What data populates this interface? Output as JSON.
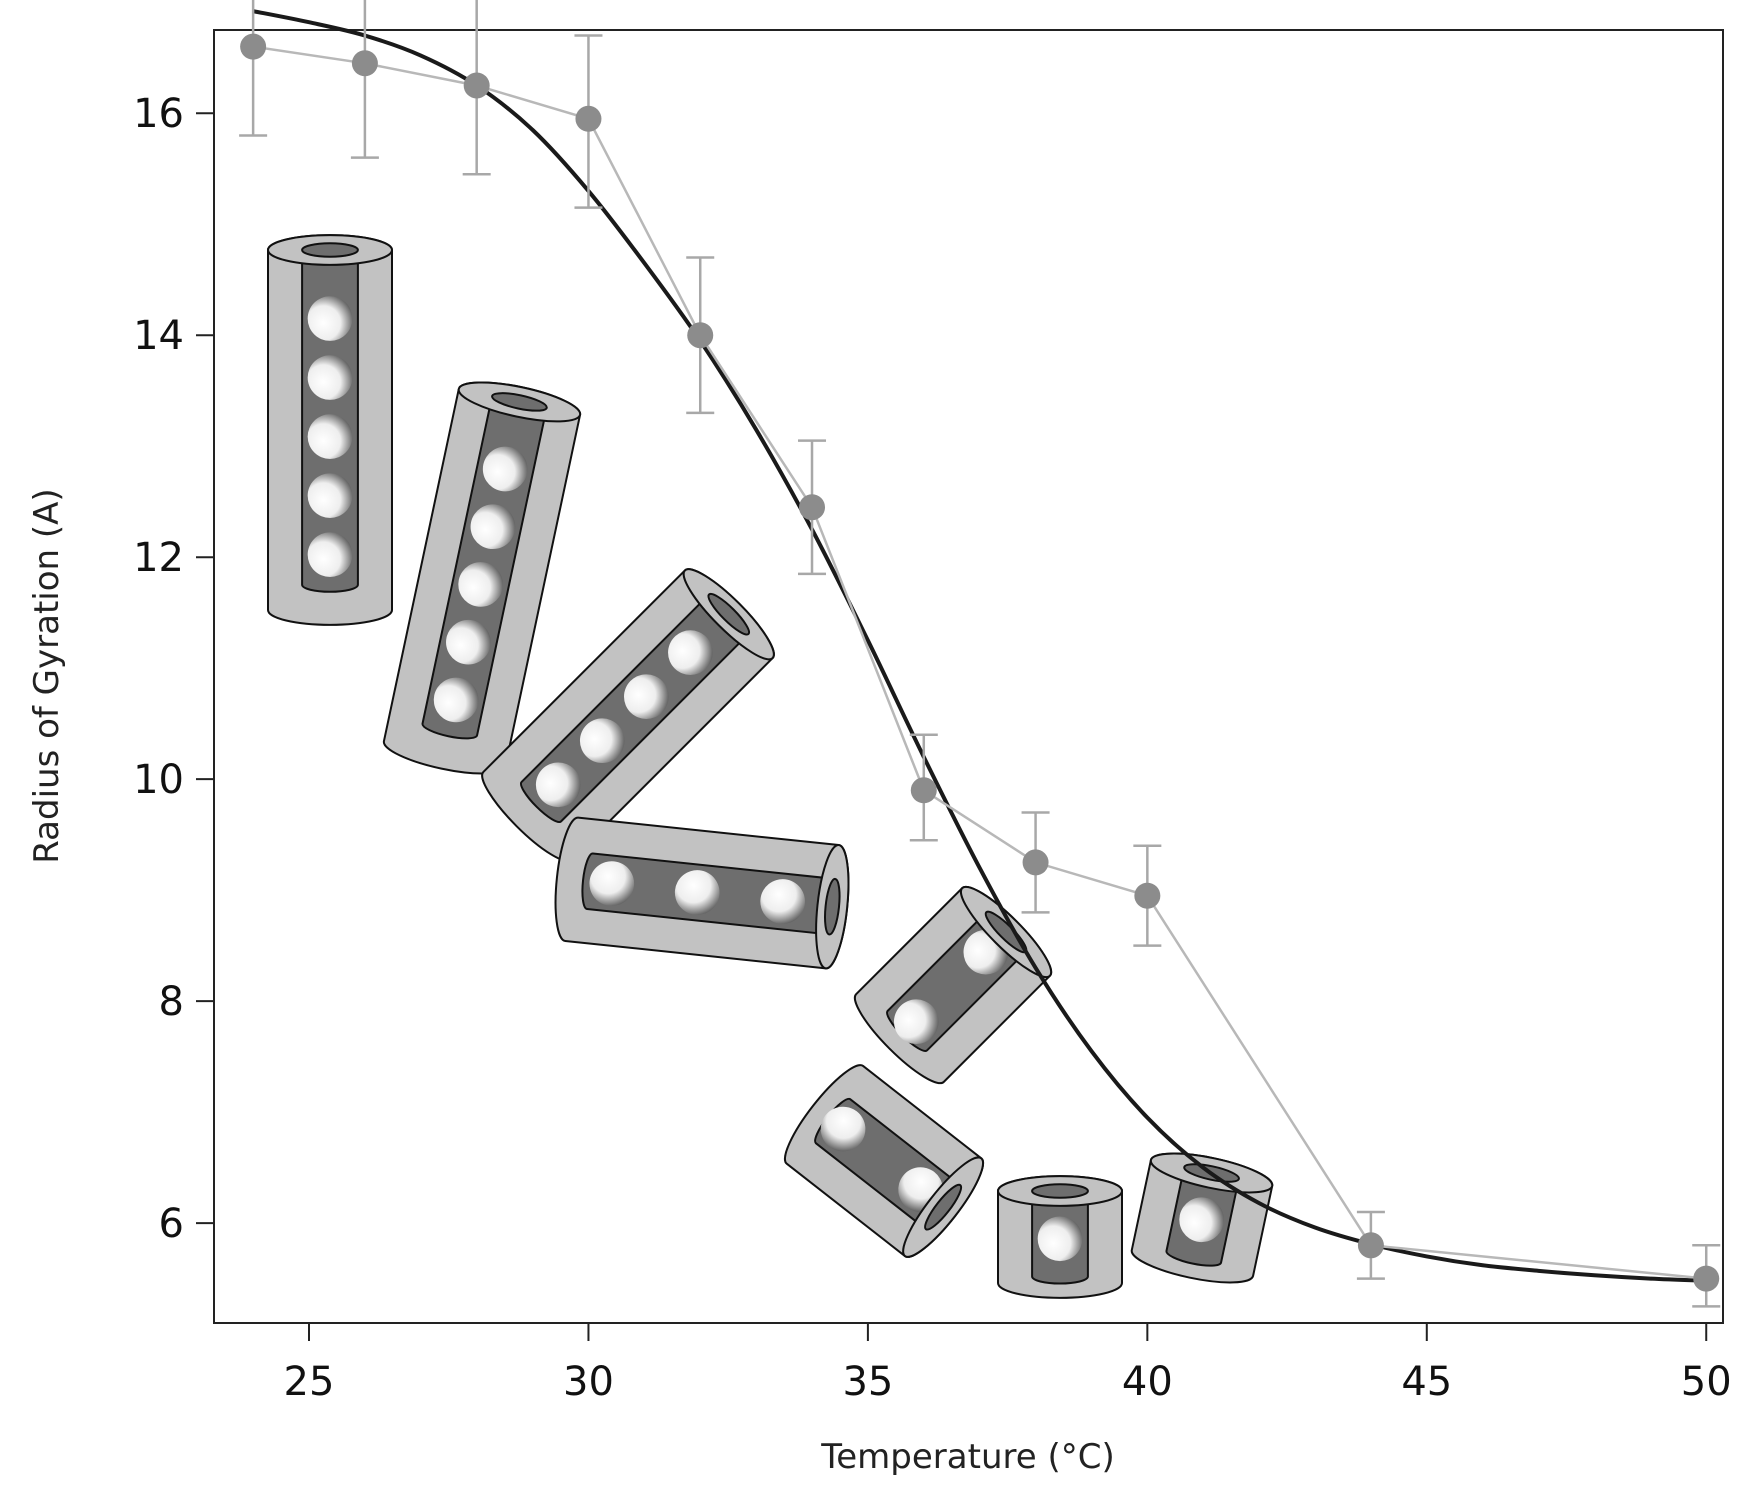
{
  "chart_data": {
    "type": "line",
    "title": "",
    "xlabel": "Temperature (°C)",
    "ylabel": "Radius of Gyration (A)",
    "xlim": [
      23.3,
      50.3
    ],
    "ylim": [
      5.1,
      16.75
    ],
    "x_ticks": [
      25,
      30,
      35,
      40,
      45,
      50
    ],
    "y_ticks": [
      6,
      8,
      10,
      12,
      14,
      16
    ],
    "grid": false,
    "legend": "none",
    "series": [
      {
        "kind": "data-with-error-bars",
        "color": "#8c8c8c",
        "line_color": "#b8b8b8",
        "x": [
          24,
          26,
          28,
          30,
          32,
          34,
          36,
          38,
          40,
          44,
          50
        ],
        "y": [
          16.6,
          16.45,
          16.25,
          15.95,
          14.0,
          12.45,
          9.9,
          9.25,
          8.95,
          5.8,
          5.5
        ],
        "err_low": [
          15.8,
          15.6,
          15.45,
          15.15,
          13.3,
          11.85,
          9.45,
          8.8,
          8.5,
          5.5,
          5.25
        ],
        "err_high": [
          17.45,
          17.25,
          17.05,
          16.7,
          14.7,
          13.05,
          10.4,
          9.7,
          9.4,
          6.1,
          5.8
        ]
      },
      {
        "kind": "fit",
        "color": "#1a1a1a",
        "x": [
          24,
          25,
          26,
          27,
          28,
          29,
          30,
          31,
          32,
          33,
          34,
          35,
          36,
          37,
          38,
          39,
          40,
          41,
          42,
          43,
          44,
          45,
          46,
          47,
          48,
          49,
          50
        ],
        "y": [
          16.92,
          16.82,
          16.7,
          16.52,
          16.25,
          15.85,
          15.3,
          14.65,
          13.95,
          13.15,
          12.25,
          11.25,
          10.2,
          9.2,
          8.3,
          7.55,
          6.95,
          6.5,
          6.18,
          5.96,
          5.81,
          5.7,
          5.62,
          5.57,
          5.53,
          5.5,
          5.48
        ]
      }
    ]
  },
  "illustration": {
    "name": "cylinder-schematics",
    "colors": {
      "outer": "#c2c2c2",
      "inner": "#6e6e6e",
      "outline": "#111111"
    }
  }
}
